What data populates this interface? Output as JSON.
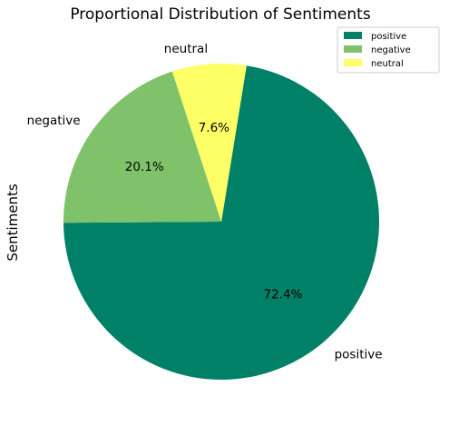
{
  "chart_data": {
    "type": "pie",
    "title": "Proportional Distribution of Sentiments",
    "ylabel": "Sentiments",
    "categories": [
      "positive",
      "negative",
      "neutral"
    ],
    "values": [
      72.4,
      20.1,
      7.6
    ],
    "percent_labels": [
      "72.4%",
      "20.1%",
      "7.6%"
    ],
    "colors": [
      "#008066",
      "#80c269",
      "#ffff66"
    ],
    "legend": {
      "placement": "top-right",
      "entries": [
        "positive",
        "negative",
        "neutral"
      ]
    }
  }
}
